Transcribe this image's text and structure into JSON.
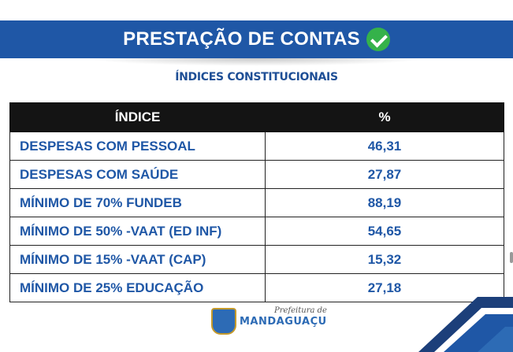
{
  "banner": {
    "title": "PRESTAÇÃO DE CONTAS"
  },
  "subtitle": "ÍNDICES CONSTITUCIONAIS",
  "table": {
    "headers": [
      "ÍNDICE",
      "%"
    ],
    "rows": [
      {
        "name": "DESPESAS COM PESSOAL",
        "value": "46,31"
      },
      {
        "name": "DESPESAS COM SAÚDE",
        "value": "27,87"
      },
      {
        "name": "MÍNIMO DE 70% FUNDEB",
        "value": "88,19"
      },
      {
        "name": "MÍNIMO DE 50% -VAAT (ED INF)",
        "value": "54,65"
      },
      {
        "name": "MÍNIMO DE 15% -VAAT (CAP)",
        "value": "15,32"
      },
      {
        "name": "MÍNIMO DE 25% EDUCAÇÃO",
        "value": "27,18"
      }
    ]
  },
  "logo": {
    "prefix": "Prefeitura de",
    "name": "MANDAGUAÇU"
  },
  "colors": {
    "brand_blue": "#1f57a6",
    "check_green": "#35b24a",
    "header_black": "#141414"
  },
  "icons": {
    "check": "check-circle-icon",
    "crest": "city-crest-icon"
  }
}
